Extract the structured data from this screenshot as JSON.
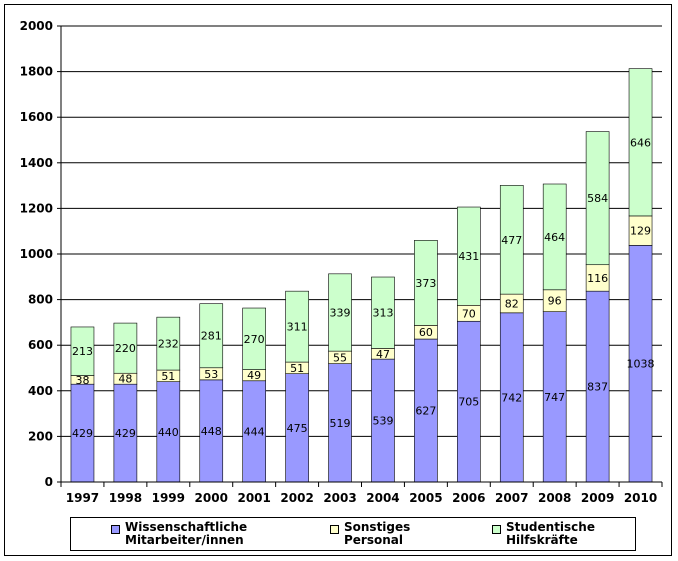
{
  "chart_data": {
    "type": "bar",
    "stacked": true,
    "categories": [
      "1997",
      "1998",
      "1999",
      "2000",
      "2001",
      "2002",
      "2003",
      "2004",
      "2005",
      "2006",
      "2007",
      "2008",
      "2009",
      "2010"
    ],
    "series": [
      {
        "name": "Wissenschaftliche\nMitarbeiter/innen",
        "color": "#9999ff",
        "values": [
          429,
          429,
          440,
          448,
          444,
          475,
          519,
          539,
          627,
          705,
          742,
          747,
          837,
          1038
        ]
      },
      {
        "name": "Sonstiges\nPersonal",
        "color": "#ffffcc",
        "values": [
          38,
          48,
          51,
          53,
          49,
          51,
          55,
          47,
          60,
          70,
          82,
          96,
          116,
          129
        ]
      },
      {
        "name": "Studentische\nHilfskräfte",
        "color": "#ccffcc",
        "values": [
          213,
          220,
          232,
          281,
          270,
          311,
          339,
          313,
          373,
          431,
          477,
          464,
          584,
          646
        ]
      }
    ],
    "ylim": [
      0,
      2000
    ],
    "yticks": [
      0,
      200,
      400,
      600,
      800,
      1000,
      1200,
      1400,
      1600,
      1800,
      2000
    ],
    "grid": true,
    "legend_position": "bottom"
  }
}
